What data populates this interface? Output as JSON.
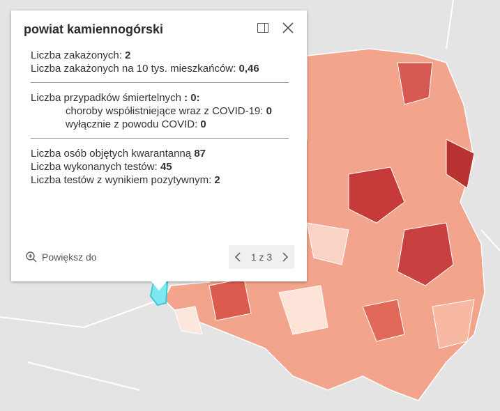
{
  "popup": {
    "title": "powiat kamiennogórski",
    "sections": [
      [
        {
          "label": "Liczba zakażonych:",
          "value": "2"
        },
        {
          "label": "Liczba zakażonych na 10 tys. mieszkańców:",
          "value": "0,46"
        }
      ],
      [
        {
          "label": "Liczba przypadków śmiertelnych",
          "value": ": 0:"
        },
        {
          "label": "choroby współistniejące wraz z COVID-19:",
          "value": "0"
        },
        {
          "label": "wyłącznie z powodu COVID:",
          "value": "0"
        }
      ],
      [
        {
          "label": "Liczba osób objętych kwarantanną",
          "value": "87"
        },
        {
          "label": "Liczba wykonanych testów:",
          "value": "45"
        },
        {
          "label": "Liczba testów z wynikiem pozytywnym:",
          "value": "2"
        }
      ]
    ],
    "zoom": "Powiększ do",
    "pager": "1 z 3"
  }
}
